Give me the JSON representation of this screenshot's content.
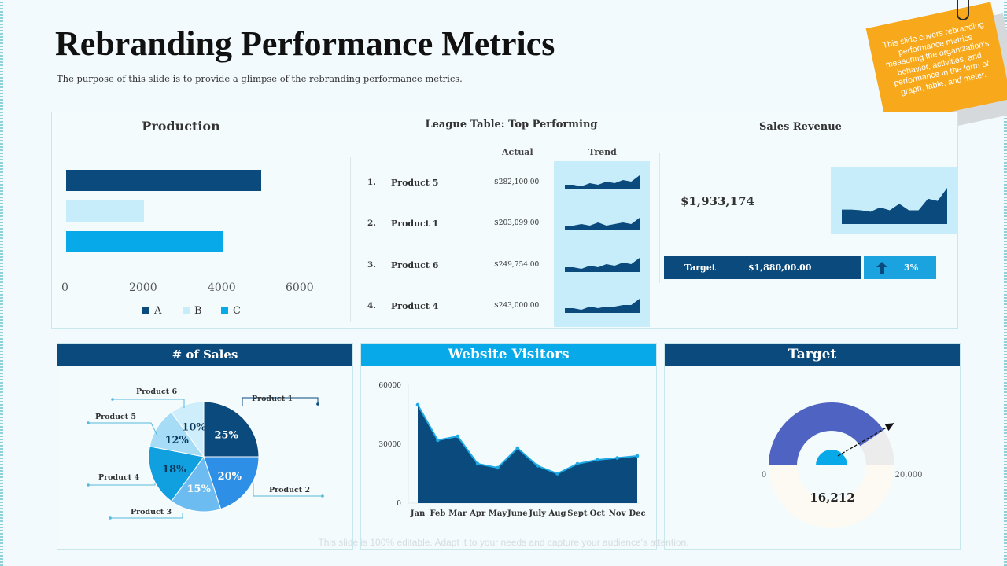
{
  "header": {
    "title": "Rebranding Performance Metrics",
    "subtitle": "The purpose of this slide is to provide a glimpse of the rebranding  performance  metrics."
  },
  "sticky_note": {
    "text": "This slide covers rebranding performance metrics measuring the organization's behavior, activities, and performance in the form of graph, table, and meter."
  },
  "colors": {
    "dark_navy": "#0b4a7c",
    "light_blue": "#c8edfa",
    "bright_blue": "#07a9e8",
    "sticky_orange": "#f7a81b"
  },
  "production": {
    "title": "Production",
    "chart_data": {
      "type": "bar",
      "orientation": "horizontal",
      "categories": [
        "A",
        "B",
        "C"
      ],
      "values": [
        5000,
        2000,
        4000
      ],
      "xlim": [
        0,
        6000
      ],
      "xticks": [
        "0",
        "2000",
        "4000",
        "6000"
      ],
      "legend": [
        "A",
        "B",
        "C"
      ]
    }
  },
  "league_table": {
    "title": "League Table: Top Performing",
    "col_actual": "Actual",
    "col_trend": "Trend",
    "rows": [
      {
        "rank": "1.",
        "name": "Product  5",
        "actual": "$282,100.00",
        "trend": [
          3,
          3,
          2,
          4,
          3,
          5,
          4,
          6,
          5,
          9
        ]
      },
      {
        "rank": "2.",
        "name": "Product  1",
        "actual": "$203,099.00",
        "trend": [
          3,
          3,
          4,
          3,
          5,
          3,
          4,
          5,
          4,
          8
        ]
      },
      {
        "rank": "3.",
        "name": "Product  6",
        "actual": "$249,754.00",
        "trend": [
          3,
          3,
          2,
          4,
          3,
          5,
          4,
          6,
          5,
          9
        ]
      },
      {
        "rank": "4.",
        "name": "Product  4",
        "actual": "$243,000.00",
        "trend": [
          3,
          3,
          2,
          4,
          3,
          4,
          4,
          5,
          5,
          9
        ]
      }
    ]
  },
  "sales_revenue": {
    "title": "Sales Revenue",
    "value": "$1,933,174",
    "trend": [
      4,
      4,
      3.8,
      3.4,
      4.6,
      3.8,
      5.6,
      3.8,
      3.8,
      7,
      6.4,
      10
    ],
    "target_label": "Target",
    "target_value": "$1,880,00.00",
    "target_pct": "3%"
  },
  "num_sales": {
    "title": "# of Sales",
    "chart_data": {
      "type": "pie",
      "slices": [
        {
          "label": "Product 1",
          "value": 25,
          "text": "25%"
        },
        {
          "label": "Product 2",
          "value": 20,
          "text": "20%"
        },
        {
          "label": "Product 3",
          "value": 15,
          "text": "15%"
        },
        {
          "label": "Product 4",
          "value": 18,
          "text": "18%"
        },
        {
          "label": "Product 5",
          "value": 12,
          "text": "12%"
        },
        {
          "label": "Product 6",
          "value": 10,
          "text": "10%"
        }
      ]
    }
  },
  "website_visitors": {
    "title": "Website Visitors",
    "chart_data": {
      "type": "area",
      "categories": [
        "Jan",
        "Feb",
        "Mar",
        "Apr",
        "May",
        "June",
        "July",
        "Aug",
        "Sept",
        "Oct",
        "Nov",
        "Dec"
      ],
      "values": [
        50000,
        32000,
        34000,
        20000,
        18000,
        28000,
        19000,
        15000,
        20000,
        22000,
        23000,
        24000
      ],
      "ylim": [
        0,
        60000
      ],
      "yticks": [
        "0",
        "30000",
        "60000"
      ]
    }
  },
  "target_meter": {
    "title": "Target",
    "value": "16,212",
    "value_num": 16212,
    "min": "0",
    "max": "20,000",
    "max_num": 20000
  },
  "footer_note": "This slide is 100% editable. Adapt it to your needs and capture your audience's attention."
}
